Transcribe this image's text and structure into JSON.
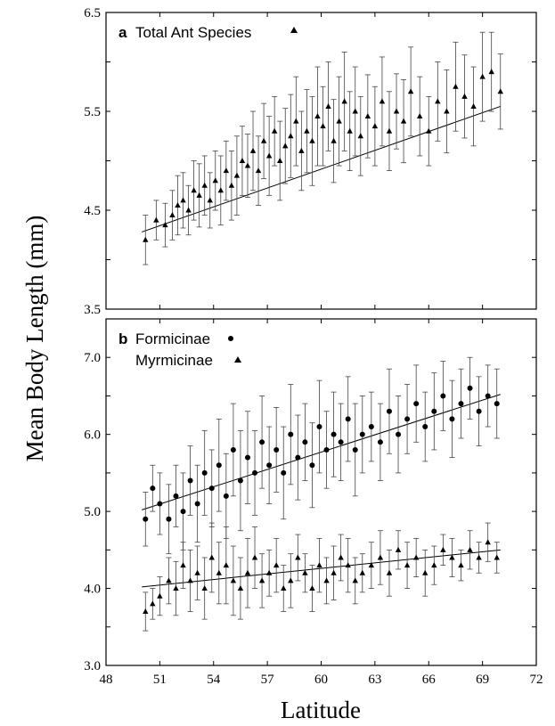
{
  "chart_data": [
    {
      "panel": "a",
      "type": "scatter",
      "legend": [
        {
          "label": "Total Ant Species",
          "marker": "triangle"
        }
      ],
      "xlabel": "Latitude",
      "ylabel": "Mean Body Length (mm)",
      "xlim": [
        48,
        72
      ],
      "ylim": [
        3.5,
        6.5
      ],
      "yticks": [
        "3.5",
        "4.5",
        "5.5",
        "6.5"
      ],
      "series": [
        {
          "name": "Total Ant Species",
          "marker": "triangle",
          "x": [
            50.2,
            50.8,
            51.3,
            51.7,
            52.0,
            52.3,
            52.6,
            52.9,
            53.2,
            53.5,
            53.8,
            54.1,
            54.4,
            54.7,
            55.0,
            55.3,
            55.6,
            55.9,
            56.2,
            56.5,
            56.8,
            57.1,
            57.4,
            57.7,
            58.0,
            58.3,
            58.6,
            58.9,
            59.2,
            59.5,
            59.8,
            60.1,
            60.4,
            60.7,
            61.0,
            61.3,
            61.6,
            61.9,
            62.2,
            62.6,
            63.0,
            63.4,
            63.8,
            64.2,
            64.6,
            65.0,
            65.5,
            66.0,
            66.5,
            67.0,
            67.5,
            68.0,
            68.5,
            69.0,
            69.5,
            70.0
          ],
          "y": [
            4.2,
            4.4,
            4.35,
            4.45,
            4.55,
            4.6,
            4.5,
            4.7,
            4.65,
            4.75,
            4.6,
            4.8,
            4.7,
            4.9,
            4.75,
            4.85,
            5.0,
            4.95,
            5.1,
            4.9,
            5.2,
            5.05,
            5.3,
            5.0,
            5.15,
            5.25,
            5.4,
            5.1,
            5.3,
            5.2,
            5.45,
            5.35,
            5.55,
            5.2,
            5.4,
            5.6,
            5.3,
            5.5,
            5.25,
            5.45,
            5.35,
            5.6,
            5.3,
            5.5,
            5.4,
            5.7,
            5.45,
            5.3,
            5.6,
            5.5,
            5.75,
            5.65,
            5.55,
            5.85,
            5.9,
            5.7
          ],
          "err": [
            0.25,
            0.2,
            0.22,
            0.25,
            0.3,
            0.28,
            0.25,
            0.3,
            0.32,
            0.3,
            0.28,
            0.3,
            0.35,
            0.3,
            0.35,
            0.4,
            0.35,
            0.32,
            0.4,
            0.35,
            0.38,
            0.4,
            0.35,
            0.4,
            0.38,
            0.42,
            0.45,
            0.4,
            0.42,
            0.45,
            0.5,
            0.4,
            0.45,
            0.42,
            0.45,
            0.5,
            0.4,
            0.45,
            0.4,
            0.42,
            0.4,
            0.45,
            0.4,
            0.38,
            0.42,
            0.45,
            0.4,
            0.35,
            0.4,
            0.42,
            0.45,
            0.42,
            0.4,
            0.45,
            0.4,
            0.38
          ]
        }
      ],
      "fit": {
        "x": [
          50,
          70
        ],
        "y": [
          4.28,
          5.55
        ]
      }
    },
    {
      "panel": "b",
      "type": "scatter",
      "legend": [
        {
          "label": "Formicinae",
          "marker": "circle"
        },
        {
          "label": "Myrmicinae",
          "marker": "triangle"
        }
      ],
      "xlabel": "Latitude",
      "ylabel": "Mean Body Length (mm)",
      "xlim": [
        48,
        72
      ],
      "ylim": [
        3.0,
        7.5
      ],
      "xticks": [
        "48",
        "51",
        "54",
        "57",
        "60",
        "63",
        "66",
        "69",
        "72"
      ],
      "yticks": [
        "3.0",
        "4.0",
        "5.0",
        "6.0",
        "7.0"
      ],
      "series": [
        {
          "name": "Formicinae",
          "marker": "circle",
          "x": [
            50.2,
            50.6,
            51.0,
            51.5,
            51.9,
            52.3,
            52.7,
            53.1,
            53.5,
            53.9,
            54.3,
            54.7,
            55.1,
            55.5,
            55.9,
            56.3,
            56.7,
            57.1,
            57.5,
            57.9,
            58.3,
            58.7,
            59.1,
            59.5,
            59.9,
            60.3,
            60.7,
            61.1,
            61.5,
            61.9,
            62.3,
            62.8,
            63.3,
            63.8,
            64.3,
            64.8,
            65.3,
            65.8,
            66.3,
            66.8,
            67.3,
            67.8,
            68.3,
            68.8,
            69.3,
            69.8
          ],
          "y": [
            4.9,
            5.3,
            5.1,
            4.9,
            5.2,
            5.0,
            5.4,
            5.1,
            5.5,
            5.3,
            5.6,
            5.2,
            5.8,
            5.4,
            5.7,
            5.5,
            5.9,
            5.6,
            5.8,
            5.5,
            6.0,
            5.7,
            5.9,
            5.6,
            6.1,
            5.8,
            6.0,
            5.9,
            6.2,
            5.8,
            6.0,
            6.1,
            5.9,
            6.3,
            6.0,
            6.2,
            6.4,
            6.1,
            6.3,
            6.5,
            6.2,
            6.4,
            6.6,
            6.3,
            6.5,
            6.4
          ],
          "err": [
            0.35,
            0.3,
            0.4,
            0.45,
            0.4,
            0.5,
            0.45,
            0.5,
            0.55,
            0.5,
            0.6,
            0.55,
            0.6,
            0.65,
            0.6,
            0.55,
            0.6,
            0.5,
            0.55,
            0.6,
            0.65,
            0.55,
            0.5,
            0.55,
            0.6,
            0.5,
            0.55,
            0.5,
            0.55,
            0.6,
            0.5,
            0.45,
            0.5,
            0.55,
            0.5,
            0.45,
            0.5,
            0.45,
            0.5,
            0.45,
            0.5,
            0.45,
            0.4,
            0.45,
            0.4,
            0.45
          ]
        },
        {
          "name": "Myrmicinae",
          "marker": "triangle",
          "x": [
            50.2,
            50.6,
            51.0,
            51.5,
            51.9,
            52.3,
            52.7,
            53.1,
            53.5,
            53.9,
            54.3,
            54.7,
            55.1,
            55.5,
            55.9,
            56.3,
            56.7,
            57.1,
            57.5,
            57.9,
            58.3,
            58.7,
            59.1,
            59.5,
            59.9,
            60.3,
            60.7,
            61.1,
            61.5,
            61.9,
            62.3,
            62.8,
            63.3,
            63.8,
            64.3,
            64.8,
            65.3,
            65.8,
            66.3,
            66.8,
            67.3,
            67.8,
            68.3,
            68.8,
            69.3,
            69.8
          ],
          "y": [
            3.7,
            3.8,
            3.9,
            4.1,
            4.0,
            4.3,
            4.1,
            4.2,
            4.0,
            4.4,
            4.2,
            4.3,
            4.1,
            4.0,
            4.2,
            4.4,
            4.1,
            4.2,
            4.3,
            4.0,
            4.1,
            4.4,
            4.2,
            4.0,
            4.3,
            4.1,
            4.2,
            4.4,
            4.3,
            4.1,
            4.2,
            4.3,
            4.4,
            4.2,
            4.5,
            4.3,
            4.4,
            4.2,
            4.3,
            4.5,
            4.4,
            4.3,
            4.5,
            4.4,
            4.6,
            4.4
          ],
          "err": [
            0.25,
            0.2,
            0.25,
            0.3,
            0.35,
            0.3,
            0.4,
            0.35,
            0.4,
            0.45,
            0.4,
            0.5,
            0.45,
            0.4,
            0.45,
            0.4,
            0.35,
            0.3,
            0.35,
            0.3,
            0.35,
            0.3,
            0.25,
            0.3,
            0.35,
            0.3,
            0.35,
            0.3,
            0.35,
            0.3,
            0.25,
            0.3,
            0.35,
            0.3,
            0.25,
            0.3,
            0.25,
            0.3,
            0.25,
            0.2,
            0.25,
            0.2,
            0.25,
            0.2,
            0.25,
            0.2
          ]
        }
      ],
      "fits": [
        {
          "series": "Formicinae",
          "x": [
            50,
            70
          ],
          "y": [
            5.02,
            6.52
          ]
        },
        {
          "series": "Myrmicinae",
          "x": [
            50,
            70
          ],
          "y": [
            4.02,
            4.5
          ]
        }
      ]
    }
  ],
  "axis_titles": {
    "x": "Latitude",
    "y": "Mean Body Length (mm)"
  },
  "legend_a": {
    "letter": "a",
    "label": "Total Ant Species"
  },
  "legend_b": {
    "letter": "b",
    "label1": "Formicinae",
    "label2": "Myrmicinae"
  }
}
